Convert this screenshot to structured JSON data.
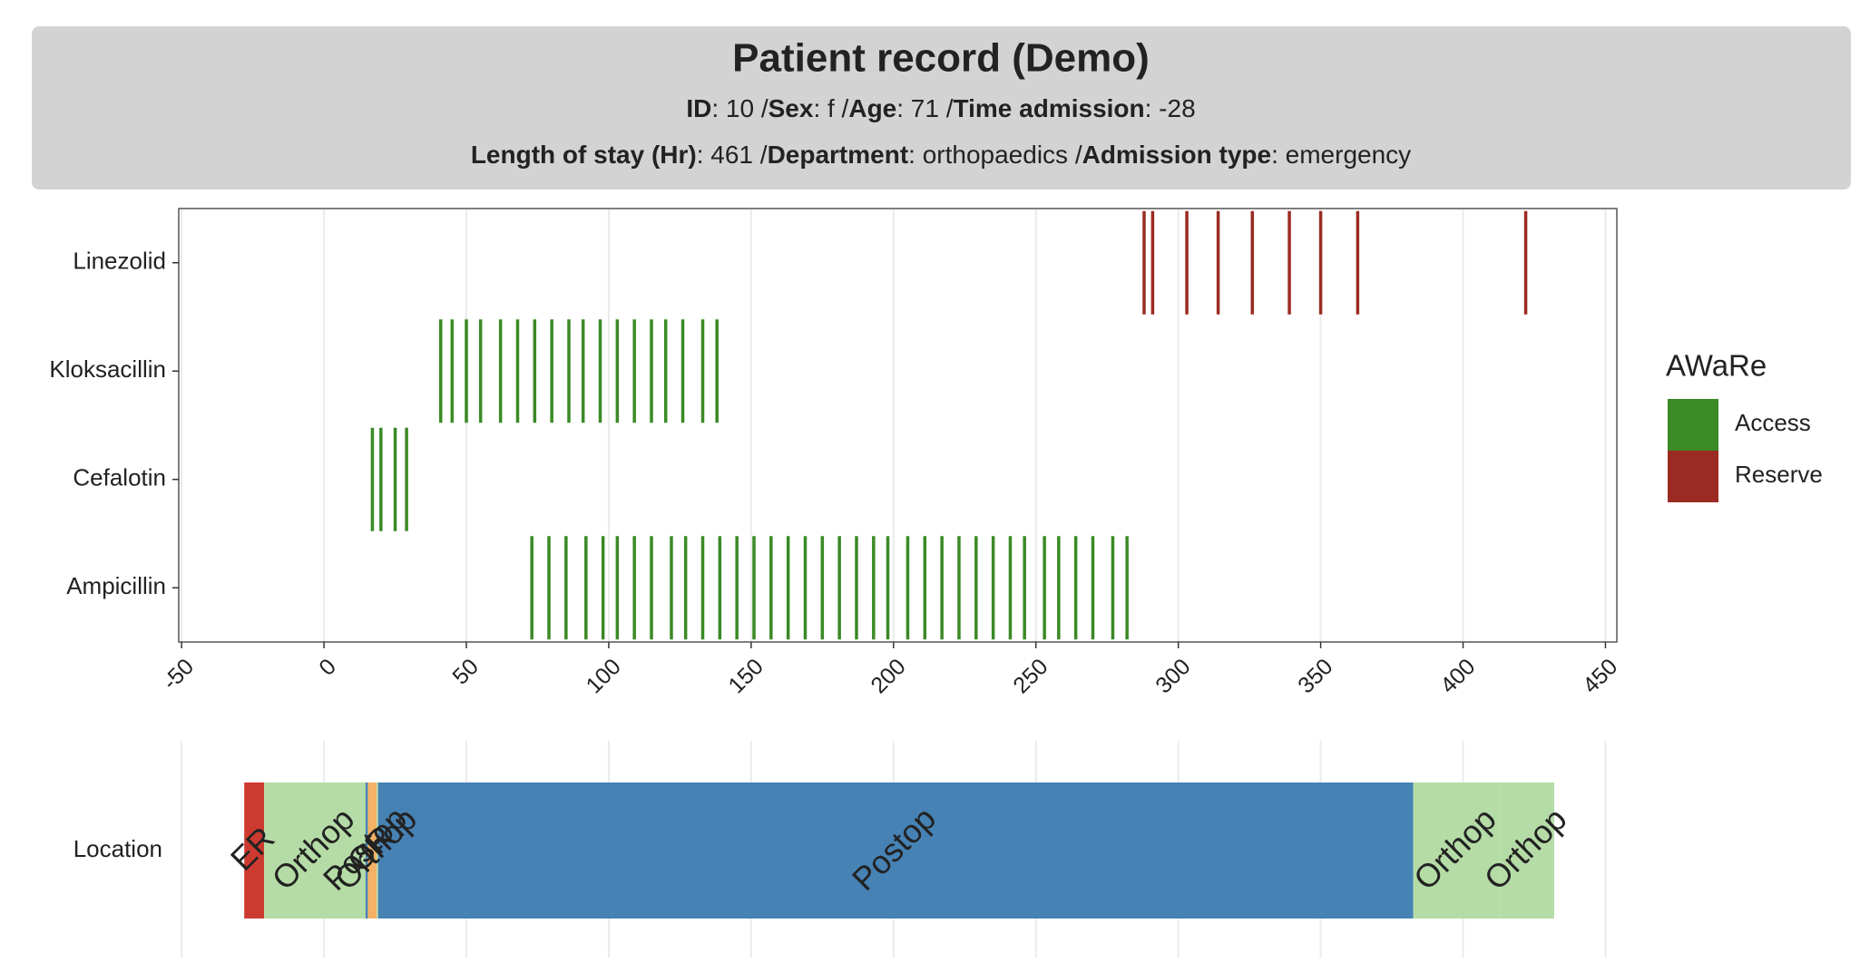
{
  "header": {
    "title": "Patient record (Demo)",
    "lines": [
      [
        {
          "text": "ID",
          "bold": true
        },
        {
          "text": ": 10 /"
        },
        {
          "text": "Sex",
          "bold": true
        },
        {
          "text": ": f /"
        },
        {
          "text": "Age",
          "bold": true
        },
        {
          "text": ": 71 /"
        },
        {
          "text": "Time admission",
          "bold": true
        },
        {
          "text": ": -28"
        }
      ],
      [
        {
          "text": "Length of stay (Hr)",
          "bold": true
        },
        {
          "text": ": 461 /"
        },
        {
          "text": "Department",
          "bold": true
        },
        {
          "text": ": orthopaedics /"
        },
        {
          "text": "Admission type",
          "bold": true
        },
        {
          "text": ": emergency"
        }
      ]
    ]
  },
  "chart_data": [
    {
      "type": "event",
      "categories": [
        "Ampicillin",
        "Cefalotin",
        "Kloksacillin",
        "Linezolid"
      ],
      "series": [
        {
          "name": "Access",
          "color": "#3a8a25",
          "values": [
            [
              73,
              79,
              85,
              92,
              98,
              103,
              109,
              115,
              122,
              127,
              133,
              139,
              145,
              151,
              157,
              163,
              169,
              175,
              181,
              187,
              193,
              198,
              205,
              211,
              217,
              223,
              229,
              235,
              241,
              246,
              253,
              258,
              264,
              270,
              277,
              282
            ],
            [
              17,
              20,
              25,
              29
            ],
            [
              41,
              45,
              50,
              55,
              62,
              68,
              74,
              80,
              86,
              91,
              97,
              103,
              109,
              115,
              120,
              126,
              133,
              138
            ],
            []
          ]
        },
        {
          "name": "Reserve",
          "color": "#9b2b22",
          "values": [
            [],
            [],
            [],
            [
              288,
              291,
              303,
              314,
              326,
              339,
              350,
              363,
              422
            ]
          ]
        }
      ],
      "legend_title": "AWaRe",
      "xlim": [
        -51,
        454
      ],
      "xticks": [
        -50,
        0,
        50,
        100,
        150,
        200,
        250,
        300,
        350,
        400,
        450
      ],
      "grid": true
    },
    {
      "type": "timeline",
      "category": "Location",
      "segments": [
        {
          "label": "ER",
          "start": -28,
          "end": -21,
          "color": "#cd3a2f"
        },
        {
          "label": "Orthop",
          "start": -21,
          "end": 14.6,
          "color": "#b5dca6"
        },
        {
          "label": "Postop",
          "start": 14.6,
          "end": 15.4,
          "color": "#4682b4"
        },
        {
          "label": "OR",
          "start": 15.4,
          "end": 18.5,
          "color": "#f4b266"
        },
        {
          "label": "Orthop",
          "start": 18.5,
          "end": 19,
          "color": "#b5dca6"
        },
        {
          "label": "Postop",
          "start": 19,
          "end": 382.5,
          "color": "#4682b4"
        },
        {
          "label": "Orthop",
          "start": 382.5,
          "end": 413,
          "color": "#b5dca6"
        },
        {
          "label": "Orthop",
          "start": 413,
          "end": 432,
          "color": "#b5dca6"
        }
      ],
      "xlim": [
        -51,
        454
      ],
      "xticks": [
        -50,
        0,
        50,
        100,
        150,
        200,
        250,
        300,
        350,
        400,
        450
      ],
      "grid": true
    }
  ]
}
